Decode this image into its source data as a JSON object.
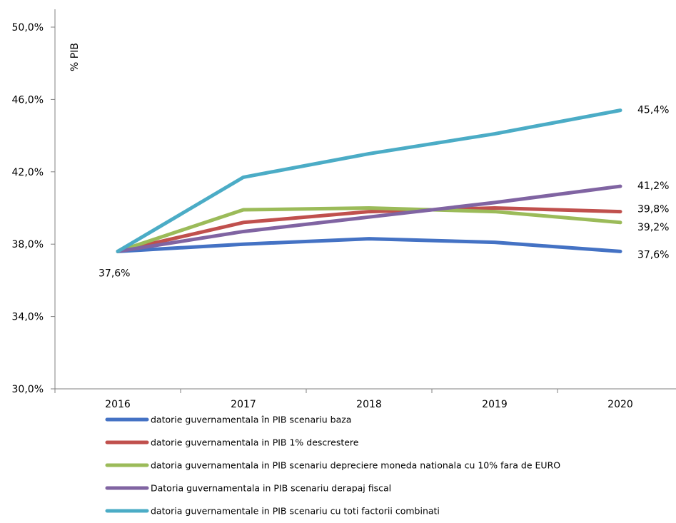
{
  "chart_data": {
    "type": "line",
    "ylabel": "% PIB",
    "categories": [
      "2016",
      "2017",
      "2018",
      "2019",
      "2020"
    ],
    "yticks": [
      "30,0%",
      "34,0%",
      "38,0%",
      "42,0%",
      "46,0%",
      "50,0%"
    ],
    "ylim": [
      30,
      50
    ],
    "series": [
      {
        "name": "datorie guvernamentala în PIB scenariu baza",
        "color": "#4472C4",
        "values": [
          37.6,
          38.0,
          38.3,
          38.1,
          37.6
        ]
      },
      {
        "name": "datorie guvernamentala in  PIB 1% descrestere",
        "color": "#C0504D",
        "values": [
          37.6,
          39.2,
          39.8,
          40.0,
          39.8
        ]
      },
      {
        "name": "datoria guvernamentala in PIB  scenariu depreciere moneda nationala cu 10% fara de EURO",
        "color": "#9BBB59",
        "values": [
          37.6,
          39.9,
          40.0,
          39.8,
          39.2
        ]
      },
      {
        "name": "Datoria guvernamentala in PIB scenariu derapaj fiscal",
        "color": "#8064A2",
        "values": [
          37.6,
          38.7,
          39.5,
          40.3,
          41.2
        ]
      },
      {
        "name": "datoria guvernamentale in PIB scenariu cu toti factorii combinati",
        "color": "#4BACC6",
        "values": [
          37.6,
          41.7,
          43.0,
          44.1,
          45.4
        ]
      }
    ],
    "data_labels": [
      {
        "text": "37,6%",
        "series": 0,
        "index": 0
      },
      {
        "text": "45,4%",
        "series": 4,
        "index": 4
      },
      {
        "text": "41,2%",
        "series": 3,
        "index": 4
      },
      {
        "text": "39,8%",
        "series": 1,
        "index": 4
      },
      {
        "text": "39,2%",
        "series": 2,
        "index": 4
      },
      {
        "text": "37,6%",
        "series": 0,
        "index": 4
      }
    ],
    "grid": false,
    "legend_position": "bottom"
  }
}
